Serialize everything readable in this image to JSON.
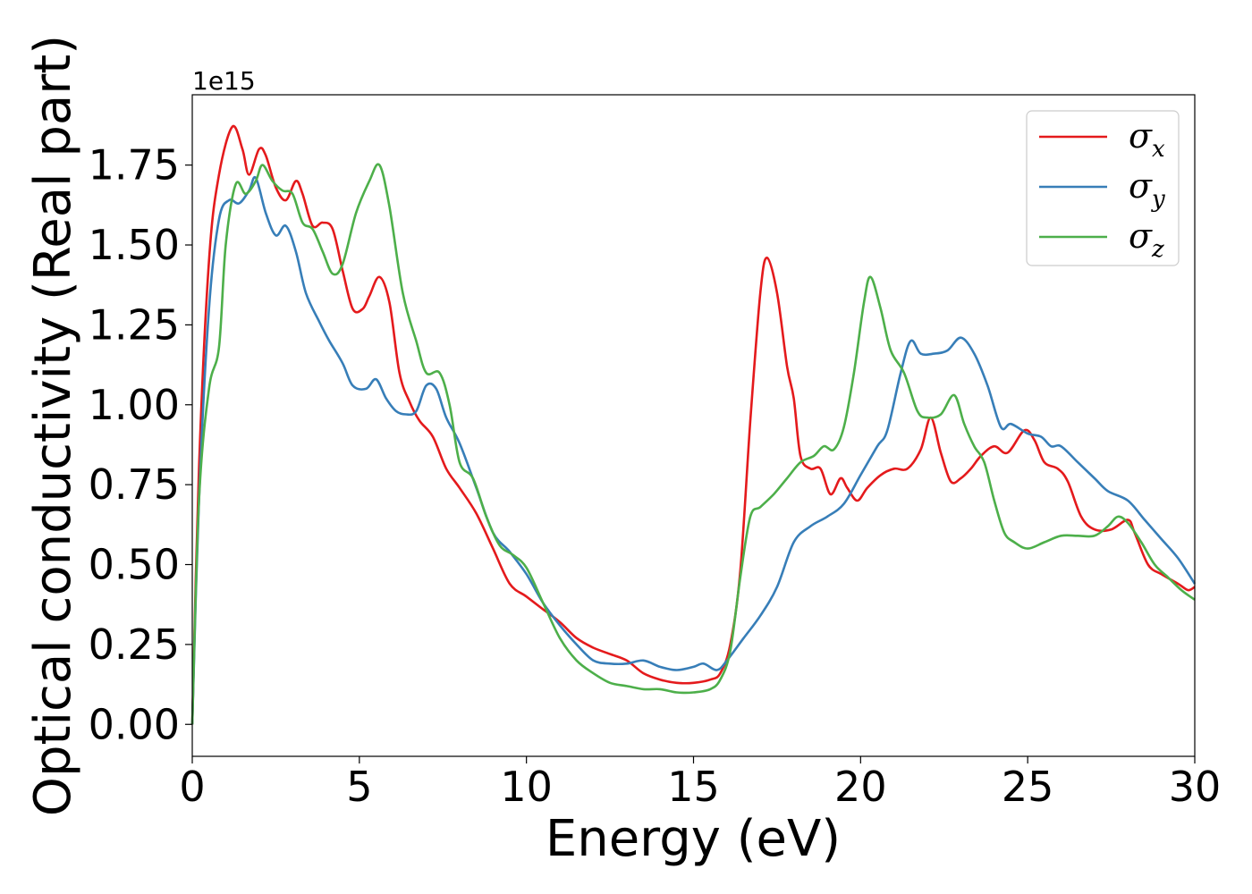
{
  "chart_data": {
    "type": "line",
    "title": "",
    "xlabel": "Energy (eV)",
    "ylabel": "Optical conductivity (Real part)",
    "y_offset_label": "1e15",
    "xlim": [
      0,
      30
    ],
    "ylim": [
      -0.1,
      1.97
    ],
    "x_ticks": [
      0,
      5,
      10,
      15,
      20,
      25,
      30
    ],
    "x_tick_labels": [
      "0",
      "5",
      "10",
      "15",
      "20",
      "25",
      "30"
    ],
    "y_ticks": [
      0,
      0.25,
      0.5,
      0.75,
      1.0,
      1.25,
      1.5,
      1.75
    ],
    "y_tick_labels": [
      "0.00",
      "0.25",
      "0.50",
      "0.75",
      "1.00",
      "1.25",
      "1.50",
      "1.75"
    ],
    "grid": false,
    "legend_position": "top-right",
    "series": [
      {
        "name": "σx",
        "symbol": "σ",
        "subscript": "x",
        "color": "#e41a1c",
        "points": [
          [
            0,
            0
          ],
          [
            0.2,
            0.8
          ],
          [
            0.5,
            1.45
          ],
          [
            0.8,
            1.72
          ],
          [
            1.2,
            1.87
          ],
          [
            1.5,
            1.8
          ],
          [
            1.7,
            1.72
          ],
          [
            2.0,
            1.8
          ],
          [
            2.2,
            1.78
          ],
          [
            2.5,
            1.68
          ],
          [
            2.8,
            1.64
          ],
          [
            3.1,
            1.7
          ],
          [
            3.3,
            1.66
          ],
          [
            3.6,
            1.56
          ],
          [
            3.9,
            1.57
          ],
          [
            4.2,
            1.55
          ],
          [
            4.5,
            1.42
          ],
          [
            4.8,
            1.3
          ],
          [
            5.1,
            1.3
          ],
          [
            5.3,
            1.34
          ],
          [
            5.6,
            1.4
          ],
          [
            5.9,
            1.32
          ],
          [
            6.2,
            1.1
          ],
          [
            6.5,
            1.01
          ],
          [
            6.8,
            0.95
          ],
          [
            7.2,
            0.9
          ],
          [
            7.6,
            0.8
          ],
          [
            8.0,
            0.74
          ],
          [
            8.5,
            0.66
          ],
          [
            9.0,
            0.55
          ],
          [
            9.5,
            0.44
          ],
          [
            10.0,
            0.4
          ],
          [
            10.5,
            0.36
          ],
          [
            11.0,
            0.32
          ],
          [
            11.5,
            0.27
          ],
          [
            12.0,
            0.24
          ],
          [
            12.5,
            0.22
          ],
          [
            13.0,
            0.2
          ],
          [
            13.5,
            0.16
          ],
          [
            14.0,
            0.14
          ],
          [
            14.5,
            0.13
          ],
          [
            15.0,
            0.13
          ],
          [
            15.5,
            0.14
          ],
          [
            15.8,
            0.16
          ],
          [
            16.1,
            0.25
          ],
          [
            16.4,
            0.48
          ],
          [
            16.7,
            0.95
          ],
          [
            17.0,
            1.35
          ],
          [
            17.2,
            1.46
          ],
          [
            17.5,
            1.35
          ],
          [
            17.8,
            1.12
          ],
          [
            18.0,
            1.02
          ],
          [
            18.2,
            0.84
          ],
          [
            18.5,
            0.8
          ],
          [
            18.8,
            0.8
          ],
          [
            19.1,
            0.72
          ],
          [
            19.4,
            0.77
          ],
          [
            19.6,
            0.74
          ],
          [
            19.9,
            0.7
          ],
          [
            20.2,
            0.74
          ],
          [
            20.6,
            0.78
          ],
          [
            21.0,
            0.8
          ],
          [
            21.4,
            0.8
          ],
          [
            21.8,
            0.86
          ],
          [
            22.1,
            0.96
          ],
          [
            22.4,
            0.85
          ],
          [
            22.7,
            0.76
          ],
          [
            23.0,
            0.77
          ],
          [
            23.3,
            0.8
          ],
          [
            23.6,
            0.84
          ],
          [
            24.0,
            0.87
          ],
          [
            24.4,
            0.85
          ],
          [
            24.9,
            0.92
          ],
          [
            25.2,
            0.89
          ],
          [
            25.5,
            0.82
          ],
          [
            25.9,
            0.8
          ],
          [
            26.2,
            0.76
          ],
          [
            26.6,
            0.65
          ],
          [
            27.0,
            0.61
          ],
          [
            27.5,
            0.61
          ],
          [
            28.0,
            0.64
          ],
          [
            28.2,
            0.6
          ],
          [
            28.6,
            0.5
          ],
          [
            29.0,
            0.47
          ],
          [
            29.5,
            0.44
          ],
          [
            29.8,
            0.42
          ],
          [
            30.0,
            0.43
          ]
        ]
      },
      {
        "name": "σy",
        "symbol": "σ",
        "subscript": "y",
        "color": "#377eb8",
        "points": [
          [
            0,
            0
          ],
          [
            0.2,
            0.7
          ],
          [
            0.5,
            1.3
          ],
          [
            0.8,
            1.58
          ],
          [
            1.1,
            1.64
          ],
          [
            1.4,
            1.63
          ],
          [
            1.7,
            1.67
          ],
          [
            1.9,
            1.71
          ],
          [
            2.2,
            1.6
          ],
          [
            2.5,
            1.53
          ],
          [
            2.8,
            1.56
          ],
          [
            3.1,
            1.48
          ],
          [
            3.4,
            1.35
          ],
          [
            3.8,
            1.26
          ],
          [
            4.1,
            1.2
          ],
          [
            4.5,
            1.13
          ],
          [
            4.8,
            1.06
          ],
          [
            5.2,
            1.05
          ],
          [
            5.5,
            1.08
          ],
          [
            5.8,
            1.02
          ],
          [
            6.1,
            0.98
          ],
          [
            6.4,
            0.97
          ],
          [
            6.7,
            0.98
          ],
          [
            7.0,
            1.06
          ],
          [
            7.3,
            1.05
          ],
          [
            7.6,
            0.96
          ],
          [
            8.0,
            0.88
          ],
          [
            8.5,
            0.74
          ],
          [
            9.0,
            0.6
          ],
          [
            9.5,
            0.54
          ],
          [
            10.0,
            0.47
          ],
          [
            10.5,
            0.38
          ],
          [
            11.0,
            0.31
          ],
          [
            11.5,
            0.25
          ],
          [
            12.0,
            0.2
          ],
          [
            12.5,
            0.19
          ],
          [
            13.0,
            0.19
          ],
          [
            13.5,
            0.2
          ],
          [
            14.0,
            0.18
          ],
          [
            14.5,
            0.17
          ],
          [
            15.0,
            0.18
          ],
          [
            15.3,
            0.19
          ],
          [
            15.7,
            0.17
          ],
          [
            16.0,
            0.2
          ],
          [
            16.5,
            0.27
          ],
          [
            17.0,
            0.34
          ],
          [
            17.5,
            0.43
          ],
          [
            18.0,
            0.57
          ],
          [
            18.5,
            0.62
          ],
          [
            19.0,
            0.65
          ],
          [
            19.5,
            0.69
          ],
          [
            20.0,
            0.78
          ],
          [
            20.5,
            0.87
          ],
          [
            20.8,
            0.92
          ],
          [
            21.2,
            1.1
          ],
          [
            21.5,
            1.2
          ],
          [
            21.8,
            1.16
          ],
          [
            22.2,
            1.16
          ],
          [
            22.6,
            1.17
          ],
          [
            23.0,
            1.21
          ],
          [
            23.4,
            1.16
          ],
          [
            23.8,
            1.06
          ],
          [
            24.2,
            0.93
          ],
          [
            24.5,
            0.94
          ],
          [
            25.0,
            0.91
          ],
          [
            25.4,
            0.9
          ],
          [
            25.7,
            0.87
          ],
          [
            26.0,
            0.87
          ],
          [
            26.5,
            0.82
          ],
          [
            27.0,
            0.77
          ],
          [
            27.4,
            0.73
          ],
          [
            28.0,
            0.7
          ],
          [
            28.5,
            0.64
          ],
          [
            29.0,
            0.58
          ],
          [
            29.5,
            0.52
          ],
          [
            30.0,
            0.44
          ]
        ]
      },
      {
        "name": "σz",
        "symbol": "σ",
        "subscript": "z",
        "color": "#4daf4a",
        "points": [
          [
            0,
            0
          ],
          [
            0.2,
            0.7
          ],
          [
            0.5,
            1.05
          ],
          [
            0.8,
            1.18
          ],
          [
            1.0,
            1.5
          ],
          [
            1.3,
            1.69
          ],
          [
            1.6,
            1.66
          ],
          [
            1.9,
            1.7
          ],
          [
            2.1,
            1.75
          ],
          [
            2.4,
            1.7
          ],
          [
            2.7,
            1.67
          ],
          [
            3.0,
            1.66
          ],
          [
            3.3,
            1.57
          ],
          [
            3.6,
            1.55
          ],
          [
            3.9,
            1.48
          ],
          [
            4.2,
            1.41
          ],
          [
            4.5,
            1.44
          ],
          [
            4.9,
            1.6
          ],
          [
            5.3,
            1.7
          ],
          [
            5.6,
            1.75
          ],
          [
            5.9,
            1.62
          ],
          [
            6.3,
            1.35
          ],
          [
            6.7,
            1.2
          ],
          [
            7.0,
            1.1
          ],
          [
            7.4,
            1.1
          ],
          [
            7.7,
            1.0
          ],
          [
            8.0,
            0.82
          ],
          [
            8.4,
            0.77
          ],
          [
            8.8,
            0.65
          ],
          [
            9.2,
            0.56
          ],
          [
            9.6,
            0.53
          ],
          [
            10.0,
            0.49
          ],
          [
            10.5,
            0.38
          ],
          [
            11.0,
            0.27
          ],
          [
            11.5,
            0.2
          ],
          [
            12.0,
            0.16
          ],
          [
            12.5,
            0.13
          ],
          [
            13.0,
            0.12
          ],
          [
            13.5,
            0.11
          ],
          [
            14.0,
            0.11
          ],
          [
            14.5,
            0.1
          ],
          [
            15.0,
            0.1
          ],
          [
            15.5,
            0.11
          ],
          [
            15.8,
            0.14
          ],
          [
            16.1,
            0.23
          ],
          [
            16.4,
            0.46
          ],
          [
            16.7,
            0.65
          ],
          [
            17.0,
            0.68
          ],
          [
            17.4,
            0.72
          ],
          [
            17.8,
            0.77
          ],
          [
            18.2,
            0.82
          ],
          [
            18.6,
            0.84
          ],
          [
            18.9,
            0.87
          ],
          [
            19.2,
            0.86
          ],
          [
            19.5,
            0.93
          ],
          [
            19.8,
            1.1
          ],
          [
            20.1,
            1.32
          ],
          [
            20.3,
            1.4
          ],
          [
            20.6,
            1.3
          ],
          [
            20.9,
            1.17
          ],
          [
            21.3,
            1.1
          ],
          [
            21.7,
            0.98
          ],
          [
            22.0,
            0.96
          ],
          [
            22.4,
            0.97
          ],
          [
            22.8,
            1.03
          ],
          [
            23.1,
            0.94
          ],
          [
            23.4,
            0.87
          ],
          [
            23.7,
            0.82
          ],
          [
            24.0,
            0.7
          ],
          [
            24.3,
            0.6
          ],
          [
            24.6,
            0.57
          ],
          [
            25.0,
            0.55
          ],
          [
            25.5,
            0.57
          ],
          [
            26.0,
            0.59
          ],
          [
            26.5,
            0.59
          ],
          [
            27.0,
            0.59
          ],
          [
            27.4,
            0.62
          ],
          [
            27.7,
            0.65
          ],
          [
            28.0,
            0.63
          ],
          [
            28.4,
            0.57
          ],
          [
            28.8,
            0.5
          ],
          [
            29.2,
            0.46
          ],
          [
            29.6,
            0.42
          ],
          [
            30.0,
            0.39
          ]
        ]
      }
    ]
  }
}
